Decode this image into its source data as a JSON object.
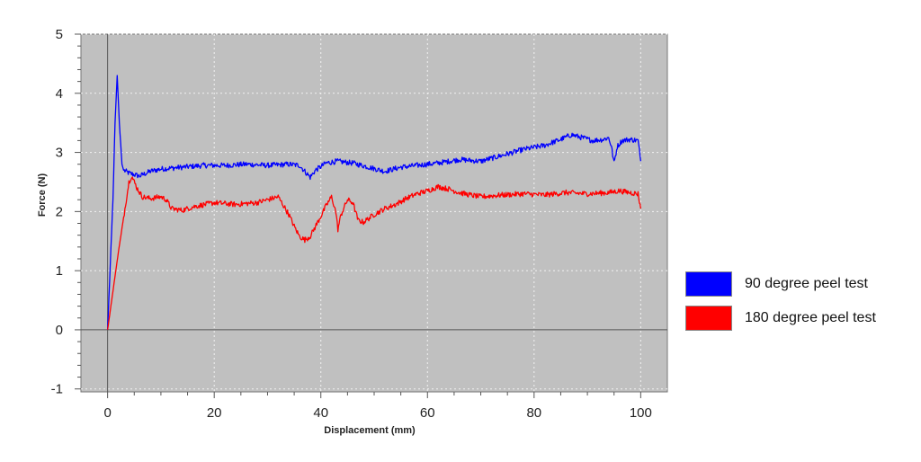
{
  "chart_data": {
    "type": "line",
    "title": "",
    "xlabel": "Displacement (mm)",
    "ylabel": "Force (N)",
    "xlim": [
      -5,
      105
    ],
    "ylim": [
      -1.05,
      5
    ],
    "x_ticks": [
      0,
      20,
      40,
      60,
      80,
      100
    ],
    "y_ticks": [
      -1,
      0,
      1,
      2,
      3,
      4,
      5
    ],
    "grid": true,
    "legend_position": "right",
    "colors": {
      "plot_background": "#c0c0c0",
      "grid": "#f2f2f2",
      "zero_line": "#555555"
    },
    "series": [
      {
        "name": "90 degree peel test",
        "color": "#0000ff",
        "points": [
          [
            0,
            0
          ],
          [
            1,
            2.2
          ],
          [
            1.4,
            3.5
          ],
          [
            1.8,
            4.3
          ],
          [
            2.2,
            3.5
          ],
          [
            2.7,
            2.8
          ],
          [
            3,
            2.7
          ],
          [
            4,
            2.65
          ],
          [
            6,
            2.6
          ],
          [
            8,
            2.68
          ],
          [
            10,
            2.72
          ],
          [
            14,
            2.75
          ],
          [
            18,
            2.78
          ],
          [
            22,
            2.78
          ],
          [
            26,
            2.8
          ],
          [
            30,
            2.78
          ],
          [
            34,
            2.8
          ],
          [
            36,
            2.78
          ],
          [
            37,
            2.68
          ],
          [
            38,
            2.58
          ],
          [
            39,
            2.7
          ],
          [
            41,
            2.82
          ],
          [
            43,
            2.85
          ],
          [
            46,
            2.82
          ],
          [
            49,
            2.75
          ],
          [
            52,
            2.68
          ],
          [
            55,
            2.75
          ],
          [
            58,
            2.78
          ],
          [
            62,
            2.82
          ],
          [
            66,
            2.88
          ],
          [
            70,
            2.85
          ],
          [
            74,
            2.95
          ],
          [
            78,
            3.05
          ],
          [
            82,
            3.12
          ],
          [
            85,
            3.22
          ],
          [
            87,
            3.3
          ],
          [
            89,
            3.25
          ],
          [
            91,
            3.2
          ],
          [
            93,
            3.22
          ],
          [
            94,
            3.25
          ],
          [
            94.5,
            3.1
          ],
          [
            95,
            2.82
          ],
          [
            95.6,
            3.1
          ],
          [
            96.5,
            3.2
          ],
          [
            98,
            3.22
          ],
          [
            99.5,
            3.2
          ],
          [
            100,
            2.85
          ]
        ]
      },
      {
        "name": "180 degree peel test",
        "color": "#ff0000",
        "points": [
          [
            0,
            0
          ],
          [
            2,
            1.3
          ],
          [
            4,
            2.5
          ],
          [
            4.5,
            2.6
          ],
          [
            5.5,
            2.4
          ],
          [
            6.5,
            2.25
          ],
          [
            8,
            2.22
          ],
          [
            10,
            2.25
          ],
          [
            11,
            2.2
          ],
          [
            12,
            2.05
          ],
          [
            14,
            2.02
          ],
          [
            16,
            2.08
          ],
          [
            20,
            2.15
          ],
          [
            24,
            2.12
          ],
          [
            28,
            2.15
          ],
          [
            30,
            2.2
          ],
          [
            32,
            2.25
          ],
          [
            33,
            2.1
          ],
          [
            34,
            1.95
          ],
          [
            35,
            1.75
          ],
          [
            36,
            1.58
          ],
          [
            37,
            1.52
          ],
          [
            38,
            1.58
          ],
          [
            39,
            1.75
          ],
          [
            40,
            1.92
          ],
          [
            41,
            2.1
          ],
          [
            42,
            2.25
          ],
          [
            42.8,
            2.0
          ],
          [
            43.2,
            1.7
          ],
          [
            43.8,
            1.95
          ],
          [
            45,
            2.2
          ],
          [
            46,
            2.15
          ],
          [
            47,
            1.85
          ],
          [
            48,
            1.82
          ],
          [
            50,
            1.95
          ],
          [
            52,
            2.05
          ],
          [
            54,
            2.12
          ],
          [
            56,
            2.22
          ],
          [
            58,
            2.3
          ],
          [
            60,
            2.35
          ],
          [
            62,
            2.42
          ],
          [
            64,
            2.38
          ],
          [
            66,
            2.32
          ],
          [
            68,
            2.28
          ],
          [
            70,
            2.25
          ],
          [
            74,
            2.28
          ],
          [
            78,
            2.3
          ],
          [
            82,
            2.28
          ],
          [
            86,
            2.32
          ],
          [
            90,
            2.3
          ],
          [
            94,
            2.32
          ],
          [
            96,
            2.35
          ],
          [
            98,
            2.32
          ],
          [
            99.5,
            2.3
          ],
          [
            100,
            2.05
          ]
        ]
      }
    ]
  }
}
